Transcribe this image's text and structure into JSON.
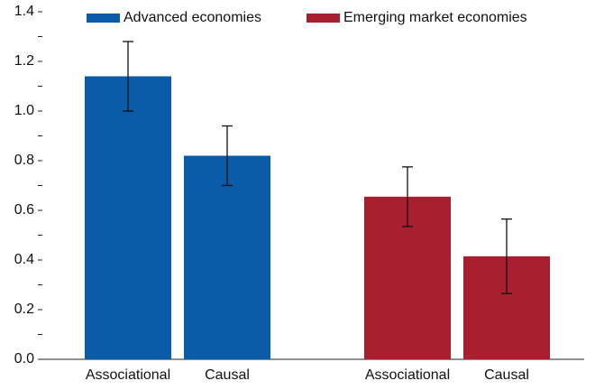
{
  "chart_data": {
    "type": "bar",
    "series": [
      {
        "name": "Advanced economies",
        "color": "#0a5ca8",
        "categories": [
          "Associational",
          "Causal"
        ],
        "values": [
          1.14,
          0.82
        ],
        "errors": [
          0.14,
          0.12
        ]
      },
      {
        "name": "Emerging market economies",
        "color": "#a8202f",
        "categories": [
          "Associational",
          "Causal"
        ],
        "values": [
          0.655,
          0.415
        ],
        "errors": [
          0.12,
          0.15
        ]
      }
    ],
    "ylim": [
      0,
      1.4
    ],
    "yticks": [
      {
        "value": 0,
        "label": "0.0"
      },
      0.2,
      0.4,
      0.6,
      0.8,
      {
        "value": 1,
        "label": "1.0"
      },
      1.2,
      1.4
    ],
    "legend": "top"
  }
}
